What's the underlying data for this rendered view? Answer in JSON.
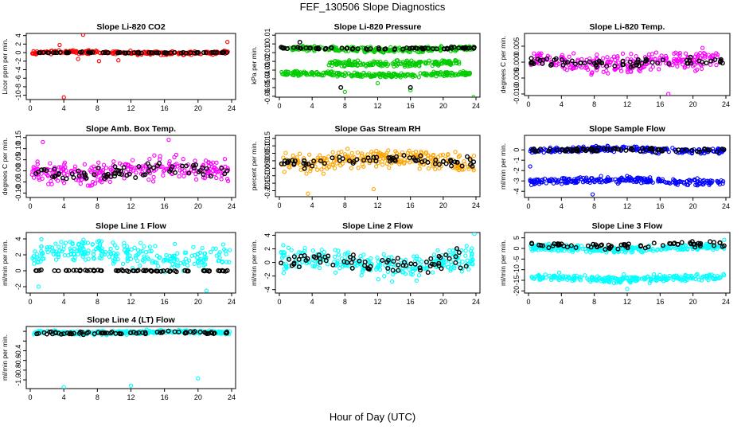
{
  "page": {
    "title": "FEF_130506  Slope Diagnostics",
    "xlabel": "Hour of Day (UTC)"
  },
  "colors": {
    "red": "#ff0000",
    "green": "#00cc00",
    "magenta": "#ff00ff",
    "orange": "#ffa500",
    "blue": "#0000ff",
    "cyan": "#00ffff",
    "black": "#000000"
  },
  "chart_data": [
    {
      "type": "scatter",
      "title": "Slope Li-820 CO2",
      "xlabel": "Hour of Day (UTC)",
      "ylabel": "Licor ppm per min.",
      "xlim": [
        0,
        24
      ],
      "ylim": [
        -11,
        4.5
      ],
      "xticks": [
        0,
        4,
        8,
        12,
        16,
        20,
        24
      ],
      "yticks": [
        4,
        2,
        0,
        -2,
        -4,
        -6,
        -8,
        -10
      ],
      "series": [
        {
          "name": "main",
          "color": "red",
          "bands": [
            {
              "center": 0,
              "spread": 0.6
            }
          ],
          "outliers": [
            [
              4,
              -10.5
            ],
            [
              6.3,
              4.2
            ],
            [
              8.2,
              -2
            ],
            [
              5.7,
              -1.5
            ],
            [
              10.5,
              -1.8
            ],
            [
              23.5,
              2.5
            ],
            [
              3.5,
              1.8
            ]
          ]
        },
        {
          "name": "overlay",
          "color": "black",
          "bands": [
            {
              "center": 0,
              "spread": 0.12
            }
          ],
          "outliers": []
        }
      ]
    },
    {
      "type": "scatter",
      "title": "Slope Li-820 Pressure",
      "xlabel": "Hour of Day (UTC)",
      "ylabel": "kPa per min.",
      "xlim": [
        0,
        24
      ],
      "ylim": [
        -0.061,
        0.012
      ],
      "xticks": [
        0,
        4,
        8,
        12,
        16,
        20,
        24
      ],
      "yticks": [
        0.01,
        0.0,
        -0.01,
        -0.02,
        -0.03,
        -0.04,
        -0.05,
        -0.06
      ],
      "series": [
        {
          "name": "main",
          "color": "green",
          "bands": [
            {
              "center": -0.006,
              "spread": 0.004
            },
            {
              "center": -0.035,
              "spread": 0.004
            },
            {
              "center": -0.022,
              "spread": 0.005,
              "from": 6,
              "to": 22
            }
          ],
          "outliers": [
            [
              8,
              -0.055
            ],
            [
              16,
              -0.053
            ],
            [
              23.7,
              -0.061
            ],
            [
              12,
              -0.045
            ]
          ]
        },
        {
          "name": "overlay",
          "color": "black",
          "bands": [
            {
              "center": -0.005,
              "spread": 0.002
            }
          ],
          "outliers": [
            [
              2.5,
              0.002
            ],
            [
              7.5,
              -0.05
            ],
            [
              16,
              -0.05
            ]
          ]
        }
      ]
    },
    {
      "type": "scatter",
      "title": "Slope Li-820 Temp.",
      "xlabel": "Hour of Day (UTC)",
      "ylabel": "degrees C per min.",
      "xlim": [
        0,
        24
      ],
      "ylim": [
        -0.0105,
        0.009
      ],
      "xticks": [
        0,
        4,
        8,
        12,
        16,
        20,
        24
      ],
      "yticks": [
        0.005,
        0.0,
        -0.005,
        -0.01
      ],
      "yticklabels": [
        "0.005",
        "0.000",
        "-0.005",
        "-0.010"
      ],
      "series": [
        {
          "name": "main",
          "color": "magenta",
          "bands": [
            {
              "center": 0,
              "spread": 0.0045
            }
          ],
          "outliers": [
            [
              17,
              -0.01
            ]
          ]
        },
        {
          "name": "overlay",
          "color": "black",
          "bands": [
            {
              "center": 0,
              "spread": 0.002
            }
          ],
          "outliers": []
        }
      ]
    },
    {
      "type": "scatter",
      "title": "Slope Amb. Box Temp.",
      "xlabel": "Hour of Day (UTC)",
      "ylabel": "degrees C per min.",
      "xlim": [
        0,
        24
      ],
      "ylim": [
        -0.12,
        0.16
      ],
      "xticks": [
        0,
        4,
        8,
        12,
        16,
        20,
        24
      ],
      "yticks": [
        0.15,
        0.1,
        0.05,
        0.0,
        -0.05,
        -0.1
      ],
      "yticklabels": [
        "0.15",
        "0.10",
        "0.05",
        "0.00",
        "-0.05",
        "-0.10"
      ],
      "series": [
        {
          "name": "main",
          "color": "magenta",
          "bands": [
            {
              "center": 0,
              "spread": 0.07
            }
          ],
          "outliers": [
            [
              1.5,
              0.13
            ],
            [
              16.5,
              0.14
            ]
          ]
        },
        {
          "name": "overlay",
          "color": "black",
          "bands": [
            {
              "center": 0,
              "spread": 0.05
            }
          ],
          "outliers": []
        }
      ]
    },
    {
      "type": "scatter",
      "title": "Slope Gas Stream RH",
      "xlabel": "Hour of Day (UTC)",
      "ylabel": "percent per min.",
      "xlim": [
        0,
        24
      ],
      "ylim": [
        -0.24,
        0.17
      ],
      "xticks": [
        0,
        4,
        8,
        12,
        16,
        20,
        24
      ],
      "yticks": [
        0.15,
        0.1,
        0.05,
        0.0,
        -0.05,
        -0.1,
        -0.15,
        -0.2
      ],
      "yticklabels": [
        "0.15",
        "0.10",
        "0.05",
        "0.00",
        "-0.05",
        "-0.10",
        "-0.15",
        "-0.20"
      ],
      "series": [
        {
          "name": "main",
          "color": "orange",
          "bands": [
            {
              "center": 0,
              "spread": 0.09
            }
          ],
          "outliers": [
            [
              3.5,
              -0.22
            ],
            [
              11.5,
              -0.19
            ]
          ]
        },
        {
          "name": "overlay",
          "color": "black",
          "bands": [
            {
              "center": 0,
              "spread": 0.05
            }
          ],
          "outliers": []
        }
      ]
    },
    {
      "type": "scatter",
      "title": "Slope Sample Flow",
      "xlabel": "Hour of Day (UTC)",
      "ylabel": "ml/min per min.",
      "xlim": [
        0,
        24
      ],
      "ylim": [
        -4.6,
        1.4
      ],
      "xticks": [
        0,
        4,
        8,
        12,
        16,
        20,
        24
      ],
      "yticks": [
        0,
        -1,
        -2,
        -3,
        -4
      ],
      "series": [
        {
          "name": "main",
          "color": "blue",
          "bands": [
            {
              "center": 0,
              "spread": 0.4
            },
            {
              "center": -3,
              "spread": 0.45
            }
          ],
          "outliers": [
            [
              7.8,
              -4.3
            ],
            [
              0.2,
              -1.6
            ]
          ]
        },
        {
          "name": "overlay",
          "color": "black",
          "bands": [
            {
              "center": 0,
              "spread": 0.3
            }
          ],
          "outliers": []
        }
      ]
    },
    {
      "type": "scatter",
      "title": "Slope Line 1 Flow",
      "xlabel": "Hour of Day (UTC)",
      "ylabel": "ml/min per min.",
      "xlim": [
        0,
        24
      ],
      "ylim": [
        -2.8,
        4.8
      ],
      "xticks": [
        0,
        4,
        8,
        12,
        16,
        20,
        24
      ],
      "yticks": [
        4,
        2,
        0,
        -2
      ],
      "series": [
        {
          "name": "main",
          "color": "cyan",
          "bands": [
            {
              "center": 2,
              "spread": 2.2
            }
          ],
          "outliers": [
            [
              1,
              -2
            ],
            [
              21,
              -2.5
            ]
          ]
        },
        {
          "name": "overlay",
          "color": "black",
          "bands": [
            {
              "center": 0,
              "spread": 0.12
            }
          ],
          "outliers": []
        }
      ]
    },
    {
      "type": "scatter",
      "title": "Slope Line 2 Flow",
      "xlabel": "Hour of Day (UTC)",
      "ylabel": "ml/min per min.",
      "xlim": [
        0,
        24
      ],
      "ylim": [
        -4.5,
        4.4
      ],
      "xticks": [
        0,
        4,
        8,
        12,
        16,
        20,
        24
      ],
      "yticks": [
        4,
        2,
        0,
        -2,
        -4
      ],
      "series": [
        {
          "name": "main",
          "color": "cyan",
          "bands": [
            {
              "center": 0,
              "spread": 2.4
            }
          ],
          "outliers": [
            [
              23.8,
              4.2
            ]
          ]
        },
        {
          "name": "overlay",
          "color": "black",
          "bands": [
            {
              "center": 0,
              "spread": 2
            }
          ],
          "outliers": []
        }
      ]
    },
    {
      "type": "scatter",
      "title": "Slope Line 3 Flow",
      "xlabel": "Hour of Day (UTC)",
      "ylabel": "ml/min per min.",
      "xlim": [
        0,
        24
      ],
      "ylim": [
        -21,
        7.5
      ],
      "xticks": [
        0,
        4,
        8,
        12,
        16,
        20,
        24
      ],
      "yticks": [
        5,
        0,
        -5,
        -10,
        -15,
        -20
      ],
      "series": [
        {
          "name": "main",
          "color": "cyan",
          "bands": [
            {
              "center": 0,
              "spread": 2.2
            },
            {
              "center": -14,
              "spread": 2.5
            }
          ],
          "outliers": [
            [
              12,
              -19
            ],
            [
              23.8,
              4
            ]
          ]
        },
        {
          "name": "overlay",
          "color": "black",
          "bands": [
            {
              "center": 1.5,
              "spread": 2
            }
          ],
          "outliers": []
        }
      ]
    },
    {
      "type": "scatter",
      "title": "Slope Line 4 (LT) Flow",
      "xlabel": "Hour of Day (UTC)",
      "ylabel": "ml/min per min.",
      "xlim": [
        0,
        24
      ],
      "ylim": [
        -1.18,
        0.1
      ],
      "xticks": [
        0,
        4,
        8,
        12,
        16,
        20,
        24
      ],
      "yticks": [
        -0.4,
        -0.6,
        -0.8,
        -1.0
      ],
      "yticklabels": [
        "-0.4",
        "-0.6",
        "-0.8",
        "-1.0"
      ],
      "yticks_unlabeled": [
        -0.2,
        0.0
      ],
      "series": [
        {
          "name": "main",
          "color": "cyan",
          "bands": [
            {
              "center": -0.02,
              "spread": 0.06
            }
          ],
          "outliers": [
            [
              4,
              -1.15
            ],
            [
              12,
              -1.12
            ],
            [
              20,
              -0.97
            ]
          ]
        },
        {
          "name": "overlay",
          "color": "black",
          "bands": [
            {
              "center": -0.03,
              "spread": 0.04
            }
          ],
          "outliers": []
        }
      ]
    }
  ]
}
